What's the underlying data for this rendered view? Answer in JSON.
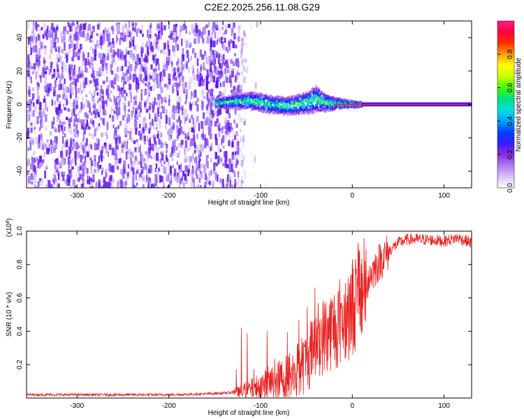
{
  "figure_title": "C2E2.2025.256.11.08.G29",
  "chart_data": [
    {
      "type": "heatmap",
      "title": "C2E2.2025.256.11.08.G29",
      "xlabel": "Height of straight line (km)",
      "ylabel": "Frequency (Hz)",
      "xlim": [
        -355,
        130
      ],
      "ylim": [
        -50,
        50
      ],
      "xticks": [
        -300,
        -200,
        -100,
        0,
        100
      ],
      "xtick_labels": [
        "-300",
        "-200",
        "-100",
        "0",
        "100"
      ],
      "yticks": [
        -40,
        -20,
        0,
        20,
        40
      ],
      "ytick_labels": [
        "-40",
        "-20",
        "0",
        "20",
        "40"
      ],
      "noise_region_km": [
        -355,
        -125
      ],
      "signal_band": {
        "x": [
          -150,
          -130,
          -110,
          -90,
          -70,
          -50,
          -40,
          -30,
          -20,
          -10,
          0,
          10,
          130
        ],
        "center_hz": [
          0.5,
          1.5,
          2,
          0,
          -1,
          1,
          3,
          1,
          0.5,
          0.3,
          0,
          0,
          0
        ],
        "halfwidth_hz": [
          2,
          3,
          4,
          4,
          4,
          5,
          6,
          4,
          3,
          2,
          1.5,
          1,
          1
        ]
      },
      "colorbar": {
        "label": "Normalized spectral amplitude",
        "range": [
          0,
          1
        ],
        "ticks": [
          0.2,
          0.4,
          0.6,
          0.8
        ],
        "tick_labels": [
          "0.2",
          "0.4",
          "0.6",
          "0.8"
        ],
        "bottom_label": "0.0",
        "colors": [
          "#ffffff",
          "#d8c2f6",
          "#b07cf0",
          "#8a2be2",
          "#3a1cff",
          "#0040ff",
          "#00a0ff",
          "#00e0e0",
          "#00e080",
          "#40ff00",
          "#c8ff00",
          "#ffff00",
          "#ffa000",
          "#ff3000",
          "#ff0040",
          "#ff1a80"
        ]
      }
    },
    {
      "type": "line",
      "xlabel": "Height of straight line (km)",
      "ylabel": "SNR (10 * v/v)",
      "y_scale_label": "(x10",
      "y_scale_exponent": "4",
      "y_scale_suffix": ")",
      "xlim": [
        -355,
        130
      ],
      "ylim": [
        0,
        1.0
      ],
      "xticks": [
        -300,
        -200,
        -100,
        0,
        100
      ],
      "xtick_labels": [
        "-300",
        "-200",
        "-100",
        "0",
        "100"
      ],
      "yticks": [
        0.2,
        0.4,
        0.6,
        0.8,
        1.0
      ],
      "ytick_labels": [
        "0.2",
        "0.4",
        "0.6",
        "0.8",
        "1.0"
      ],
      "color": "#e82020",
      "series": [
        {
          "name": "SNR",
          "x": [
            -355,
            -300,
            -250,
            -200,
            -160,
            -140,
            -120,
            -100,
            -80,
            -60,
            -50,
            -40,
            -30,
            -20,
            -10,
            0,
            10,
            20,
            30,
            40,
            50,
            60,
            80,
            100,
            115,
            130
          ],
          "y": [
            0.02,
            0.02,
            0.02,
            0.02,
            0.025,
            0.03,
            0.04,
            0.07,
            0.1,
            0.16,
            0.22,
            0.32,
            0.38,
            0.42,
            0.48,
            0.55,
            0.65,
            0.74,
            0.82,
            0.88,
            0.93,
            0.95,
            0.95,
            0.94,
            0.96,
            0.93
          ]
        }
      ]
    }
  ]
}
